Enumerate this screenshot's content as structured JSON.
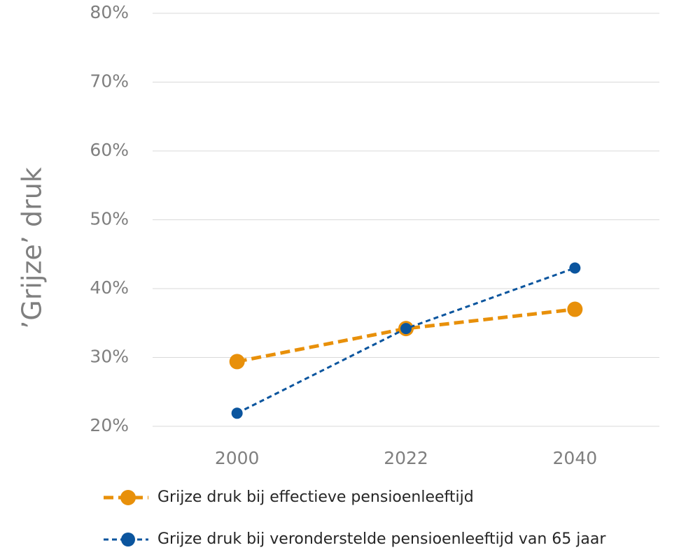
{
  "chart_data": {
    "type": "line",
    "y_label": "’Grijze’ druk",
    "categories": [
      "2000",
      "2022",
      "2040"
    ],
    "series": [
      {
        "name": "Grijze druk bij effectieve pensioenleeftijd",
        "color": "#e8900a",
        "values": [
          29.4,
          34.2,
          37
        ]
      },
      {
        "name": "Grijze druk bij veronderstelde pensioenleeftijd van 65 jaar",
        "color": "#0b559e",
        "values": [
          21.9,
          34.2,
          43
        ]
      }
    ],
    "ylim": [
      20,
      80
    ],
    "yticks": [
      {
        "value": 20,
        "label": "20%"
      },
      {
        "value": 30,
        "label": "30%"
      },
      {
        "value": 40,
        "label": "40%"
      },
      {
        "value": 50,
        "label": "50%"
      },
      {
        "value": 60,
        "label": "60%"
      },
      {
        "value": 70,
        "label": "70%"
      },
      {
        "value": 80,
        "label": "80%"
      }
    ],
    "grid": true
  }
}
